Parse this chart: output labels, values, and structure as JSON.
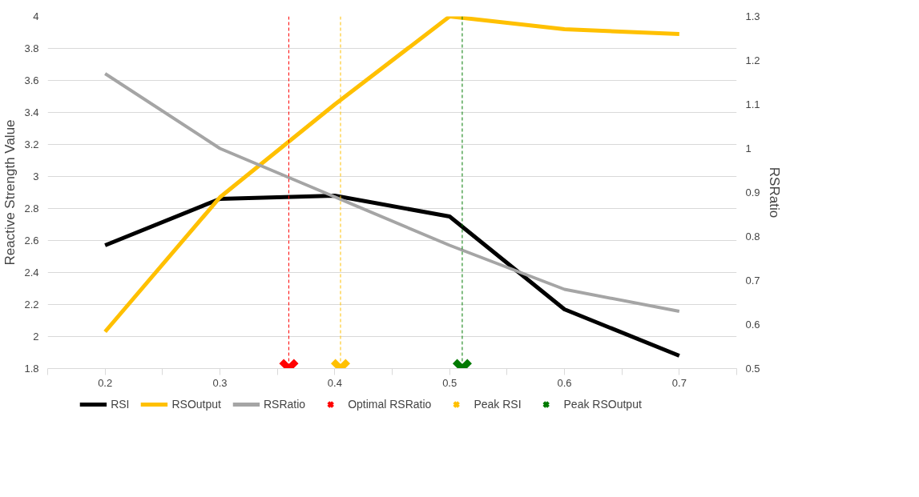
{
  "chart_data": {
    "type": "line",
    "ylabel": "Reactive Strength Value",
    "y2label": "RSRatio",
    "xlim": [
      0.15,
      0.75
    ],
    "xticks": [
      {
        "value": 0.15,
        "label": null
      },
      0.2,
      {
        "value": 0.25,
        "label": null
      },
      0.3,
      {
        "value": 0.35,
        "label": null
      },
      0.4,
      {
        "value": 0.45,
        "label": null
      },
      0.5,
      {
        "value": 0.55,
        "label": null
      },
      0.6,
      {
        "value": 0.65,
        "label": null
      },
      0.7,
      {
        "value": 0.75,
        "label": null
      }
    ],
    "ylim": [
      1.8,
      4
    ],
    "yticks": [
      1.8,
      2,
      2.2,
      2.4,
      2.6,
      2.8,
      3,
      3.2,
      3.4,
      3.6,
      3.8,
      4
    ],
    "y2lim": [
      0.5,
      1.3
    ],
    "y2ticks": [
      0.5,
      0.6,
      0.7,
      0.8,
      0.9,
      1,
      1.1,
      1.2,
      1.3
    ],
    "grid": "y",
    "legend": "bottom",
    "marker": "none",
    "line_style": "solid",
    "x": [
      0.2,
      0.3,
      0.4,
      0.5,
      0.6,
      0.7
    ],
    "series": [
      {
        "name": "RSI",
        "color": "#000000",
        "values": [
          2.57,
          2.86,
          2.88,
          2.75,
          2.17,
          1.88
        ]
      },
      {
        "name": "RSOutput",
        "color": "#ffc000",
        "values": [
          2.03,
          2.87,
          3.45,
          4.0,
          3.92,
          3.89
        ]
      },
      {
        "name": "RSRatio",
        "color": "#a5a5a5",
        "axis": "y2",
        "values": [
          1.17,
          1.0,
          0.89,
          0.78,
          0.68,
          0.63
        ]
      },
      {
        "name": "Optimal RSRatio",
        "type": "scatter",
        "marker": "cross",
        "color": "#ff0000",
        "x": [
          0.36
        ],
        "values": [
          1.8
        ]
      },
      {
        "name": "Peak RSI",
        "type": "scatter",
        "marker": "cross",
        "color": "#ffc000",
        "x": [
          0.405
        ],
        "values": [
          1.8
        ]
      },
      {
        "name": "Peak RSOutput",
        "type": "scatter",
        "marker": "cross",
        "color": "#007a00",
        "x": [
          0.511
        ],
        "values": [
          1.8
        ]
      }
    ],
    "ref_lines": [
      {
        "axis": "x",
        "value": 0.36,
        "color": "#ff0000",
        "line_style": "dashed"
      },
      {
        "axis": "x",
        "value": 0.405,
        "color": "#ffc000",
        "line_style": "dashed"
      },
      {
        "axis": "x",
        "value": 0.511,
        "color": "#007a00",
        "line_style": "dashed"
      }
    ]
  }
}
